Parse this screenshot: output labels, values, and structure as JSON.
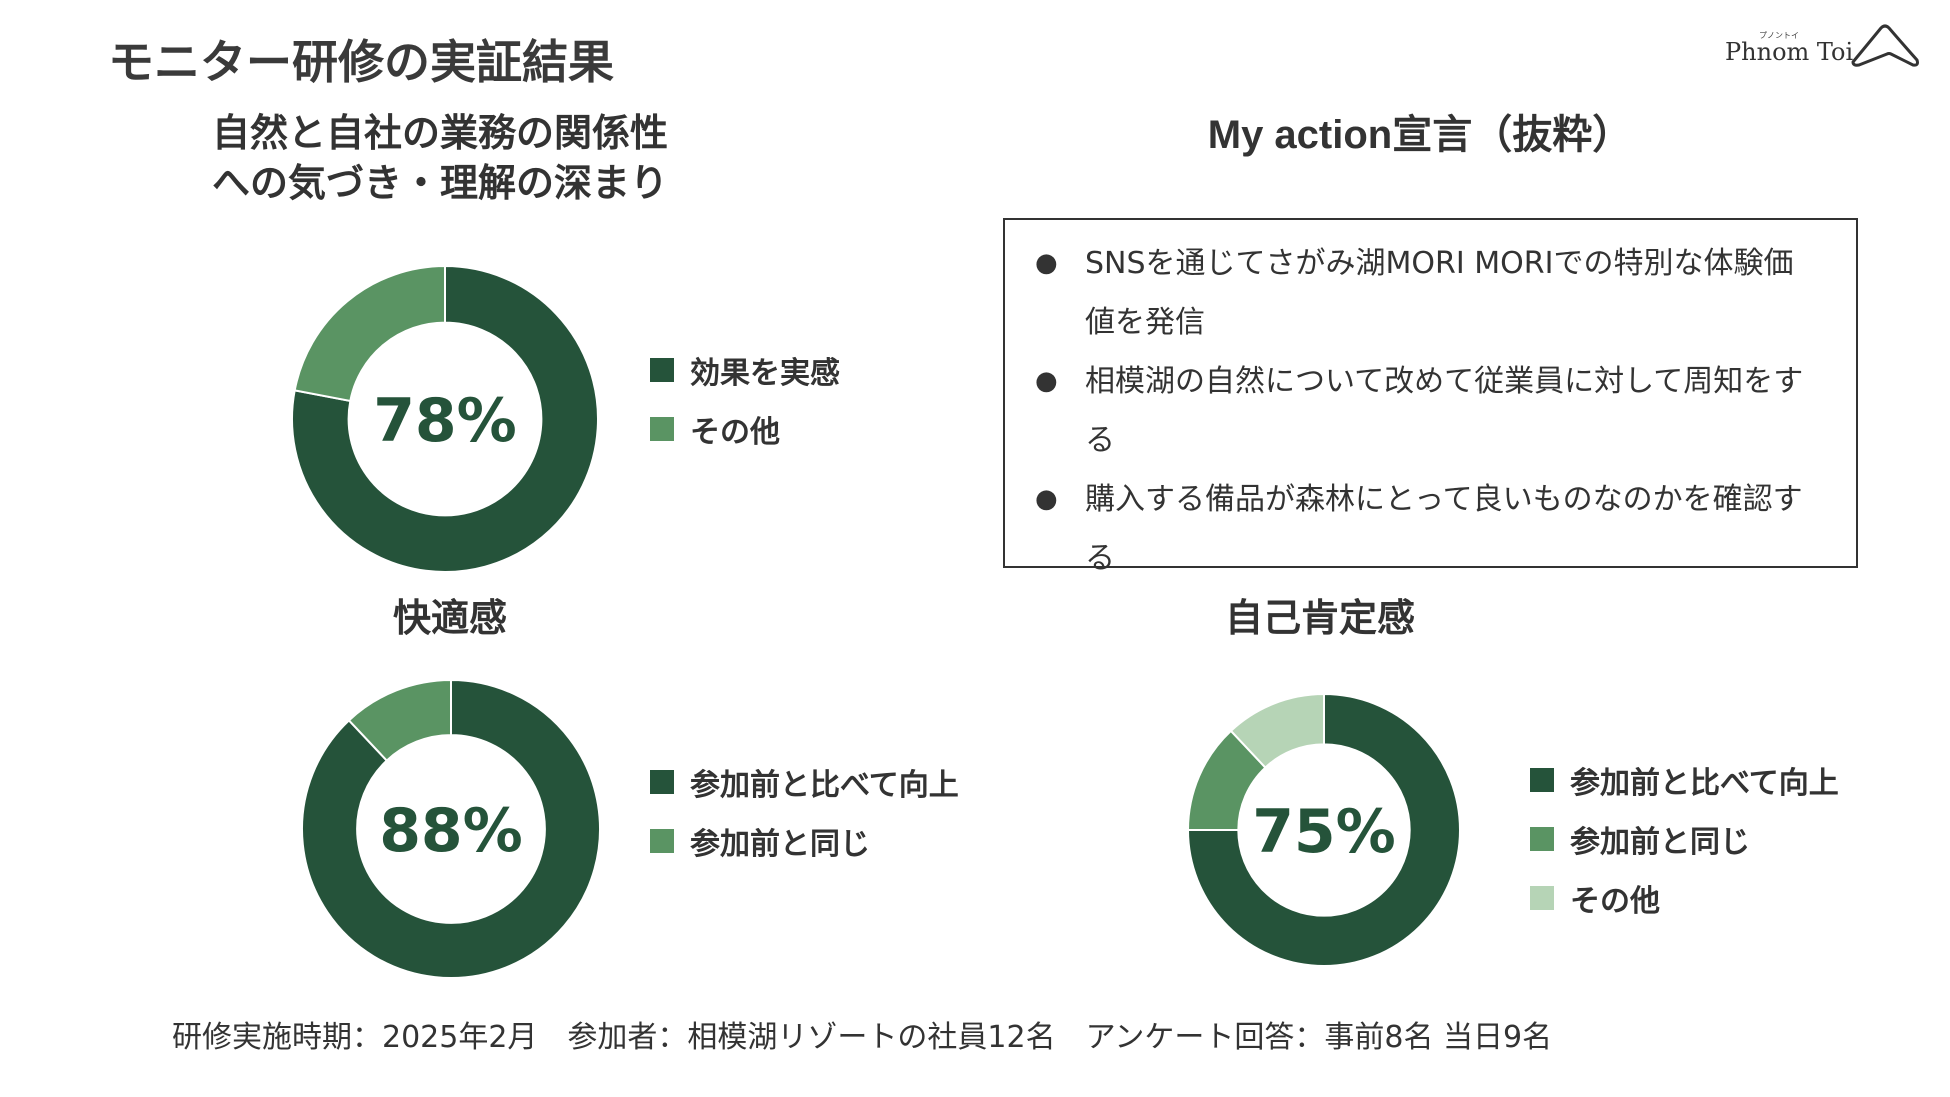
{
  "page_title": "モニター研修の実証結果",
  "logo": {
    "text": "Phnom Toi",
    "ruby": "プノントイ"
  },
  "colors": {
    "dark": "#25533a",
    "mid": "#5a9463",
    "light": "#b6d4b6"
  },
  "section_titles": {
    "relationship_line1": "自然と自社の業務の関係性",
    "relationship_line2": "への気づき・理解の深まり",
    "comfort": "快適感",
    "self_esteem": "自己肯定感",
    "my_action": "My action宣言（抜粋）"
  },
  "chart_data": [
    {
      "type": "pie",
      "title": "自然と自社の業務の関係性への気づき・理解の深まり",
      "center_label": "78%",
      "slices": [
        {
          "label": "効果を実感",
          "value": 78,
          "color": "#25533a"
        },
        {
          "label": "その他",
          "value": 22,
          "color": "#5a9463"
        }
      ]
    },
    {
      "type": "pie",
      "title": "快適感",
      "center_label": "88%",
      "slices": [
        {
          "label": "参加前と比べて向上",
          "value": 88,
          "color": "#25533a"
        },
        {
          "label": "参加前と同じ",
          "value": 12,
          "color": "#5a9463"
        }
      ]
    },
    {
      "type": "pie",
      "title": "自己肯定感",
      "center_label": "75%",
      "slices": [
        {
          "label": "参加前と比べて向上",
          "value": 75,
          "color": "#25533a"
        },
        {
          "label": "参加前と同じ",
          "value": 13,
          "color": "#5a9463"
        },
        {
          "label": "その他",
          "value": 12,
          "color": "#b6d4b6"
        }
      ]
    }
  ],
  "my_action": {
    "bullet": "●",
    "items": [
      "SNSを通じてさがみ湖MORI MORIでの特別な体験価値を発信",
      "相模湖の自然について改めて従業員に対して周知をする",
      "購入する備品が森林にとって良いものなのかを確認する"
    ]
  },
  "footer": "研修実施時期：2025年2月　参加者：相模湖リゾートの社員12名　アンケート回答：事前8名 当日9名"
}
